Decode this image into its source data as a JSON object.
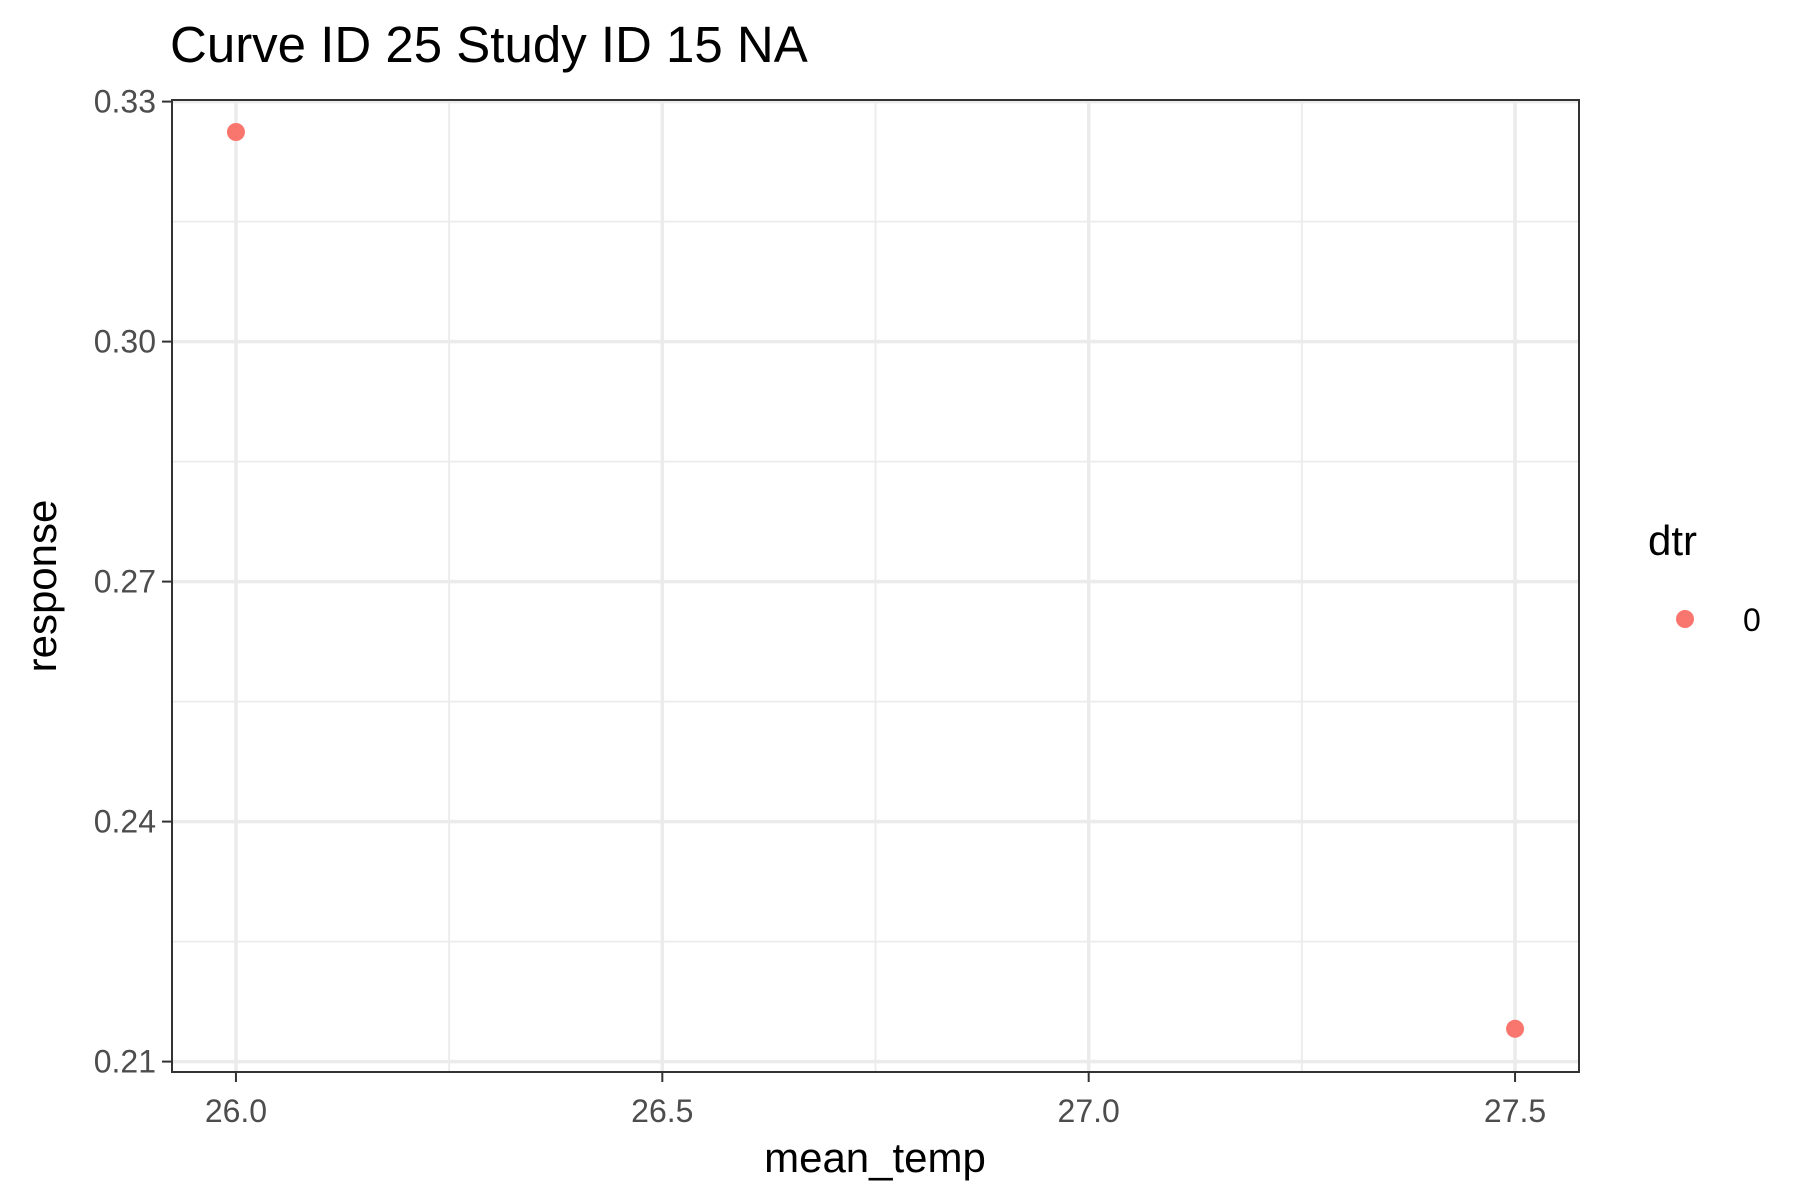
{
  "chart_data": {
    "type": "scatter",
    "title": "Curve ID 25 Study ID 15 NA",
    "xlabel": "mean_temp",
    "ylabel": "response",
    "xlim": [
      25.925,
      27.575
    ],
    "ylim": [
      0.2087,
      0.3302
    ],
    "x_ticks": [
      26.0,
      26.5,
      27.0,
      27.5
    ],
    "x_tick_labels": [
      "26.0",
      "26.5",
      "27.0",
      "27.5"
    ],
    "x_minor_ticks": [
      26.25,
      26.75,
      27.25
    ],
    "y_ticks": [
      0.21,
      0.24,
      0.27,
      0.3,
      0.33
    ],
    "y_tick_labels": [
      "0.21",
      "0.24",
      "0.27",
      "0.30",
      "0.33"
    ],
    "y_minor_ticks": [
      0.225,
      0.255,
      0.285,
      0.315
    ],
    "grid": true,
    "legend": {
      "title": "dtr",
      "placement": "right",
      "entries": [
        {
          "label": "0",
          "color": "#F8766D"
        }
      ]
    },
    "series": [
      {
        "name": "0",
        "color": "#F8766D",
        "points": [
          {
            "x": 26.0,
            "y": 0.3262
          },
          {
            "x": 27.5,
            "y": 0.2141
          }
        ]
      }
    ]
  }
}
